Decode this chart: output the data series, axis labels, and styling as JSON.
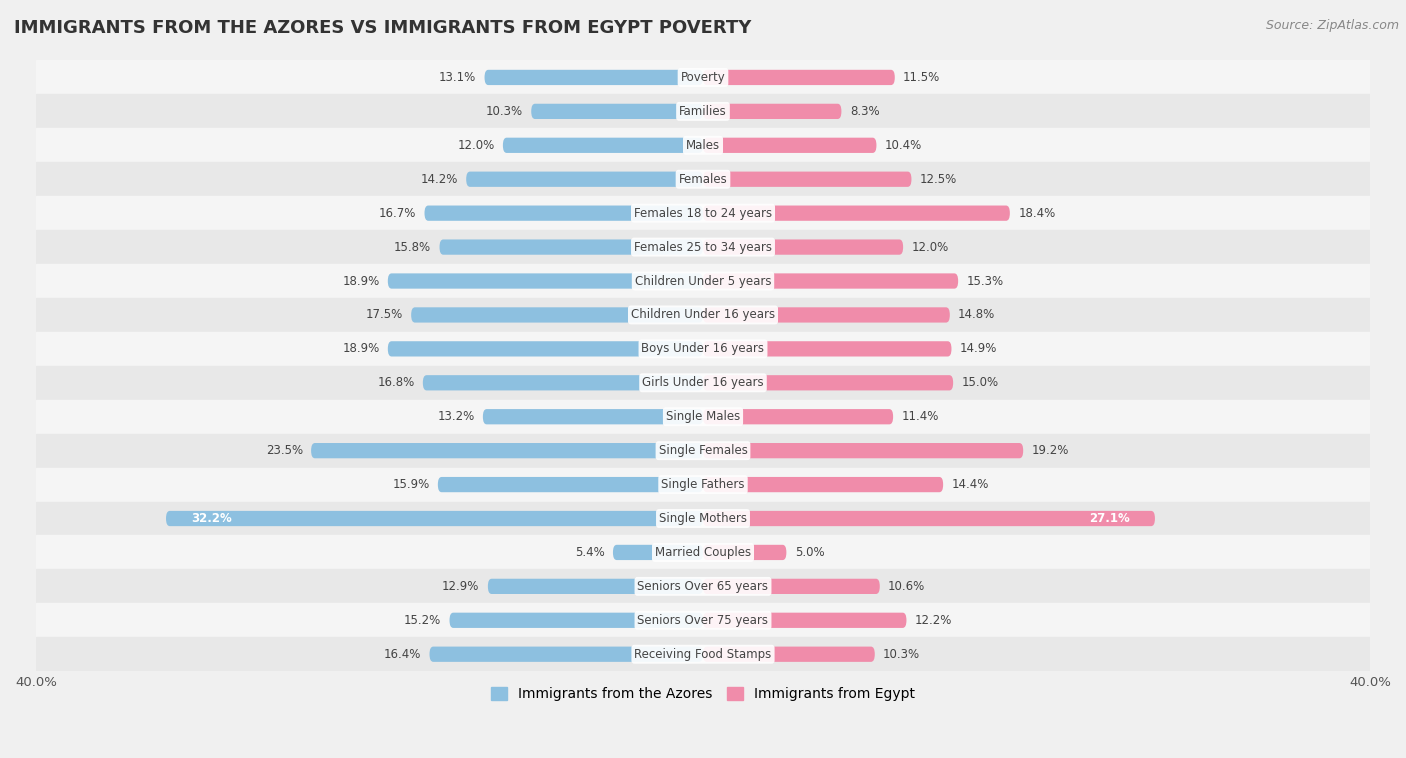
{
  "title": "IMMIGRANTS FROM THE AZORES VS IMMIGRANTS FROM EGYPT POVERTY",
  "source": "Source: ZipAtlas.com",
  "categories": [
    "Poverty",
    "Families",
    "Males",
    "Females",
    "Females 18 to 24 years",
    "Females 25 to 34 years",
    "Children Under 5 years",
    "Children Under 16 years",
    "Boys Under 16 years",
    "Girls Under 16 years",
    "Single Males",
    "Single Females",
    "Single Fathers",
    "Single Mothers",
    "Married Couples",
    "Seniors Over 65 years",
    "Seniors Over 75 years",
    "Receiving Food Stamps"
  ],
  "azores_values": [
    13.1,
    10.3,
    12.0,
    14.2,
    16.7,
    15.8,
    18.9,
    17.5,
    18.9,
    16.8,
    13.2,
    23.5,
    15.9,
    32.2,
    5.4,
    12.9,
    15.2,
    16.4
  ],
  "egypt_values": [
    11.5,
    8.3,
    10.4,
    12.5,
    18.4,
    12.0,
    15.3,
    14.8,
    14.9,
    15.0,
    11.4,
    19.2,
    14.4,
    27.1,
    5.0,
    10.6,
    12.2,
    10.3
  ],
  "azores_color": "#8dc0e0",
  "egypt_color": "#f08caa",
  "row_colors": [
    "#f5f5f5",
    "#e8e8e8"
  ],
  "background_color": "#f0f0f0",
  "xlim": 40.0,
  "bar_height": 0.45,
  "legend_label_azores": "Immigrants from the Azores",
  "legend_label_egypt": "Immigrants from Egypt",
  "single_mothers_idx": 13
}
